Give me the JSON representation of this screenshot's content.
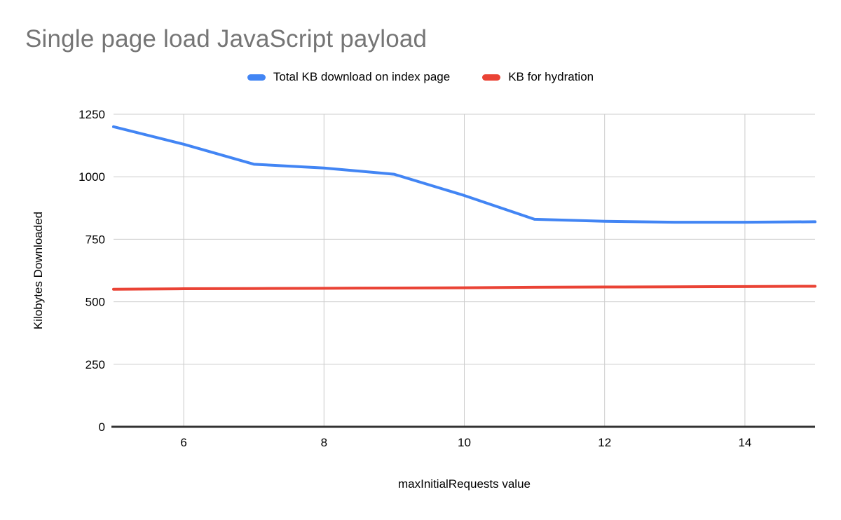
{
  "title": "Single page load JavaScript payload",
  "colors": {
    "title": "#757575",
    "text": "#000000",
    "gridline": "#cccccc",
    "axis": "#333333",
    "background": "#ffffff",
    "series_blue": "#4285F4",
    "series_red": "#EA4335"
  },
  "chart_data": {
    "type": "line",
    "title": "Single page load JavaScript payload",
    "xlabel": "maxInitialRequests value",
    "ylabel": "Kilobytes Downloaded",
    "x": [
      5,
      6,
      7,
      8,
      9,
      10,
      11,
      12,
      13,
      14,
      15
    ],
    "series": [
      {
        "name": "Total KB download on index page",
        "color": "#4285F4",
        "values": [
          1200,
          1130,
          1050,
          1035,
          1010,
          925,
          830,
          822,
          818,
          818,
          820
        ]
      },
      {
        "name": "KB for hydration",
        "color": "#EA4335",
        "values": [
          550,
          552,
          553,
          554,
          555,
          556,
          558,
          559,
          560,
          561,
          562
        ]
      }
    ],
    "xlim": [
      5,
      15
    ],
    "ylim": [
      0,
      1250
    ],
    "x_ticks": [
      6,
      8,
      10,
      12,
      14
    ],
    "y_ticks": [
      0,
      250,
      500,
      750,
      1000,
      1250
    ],
    "grid": true,
    "legend_position": "top"
  }
}
